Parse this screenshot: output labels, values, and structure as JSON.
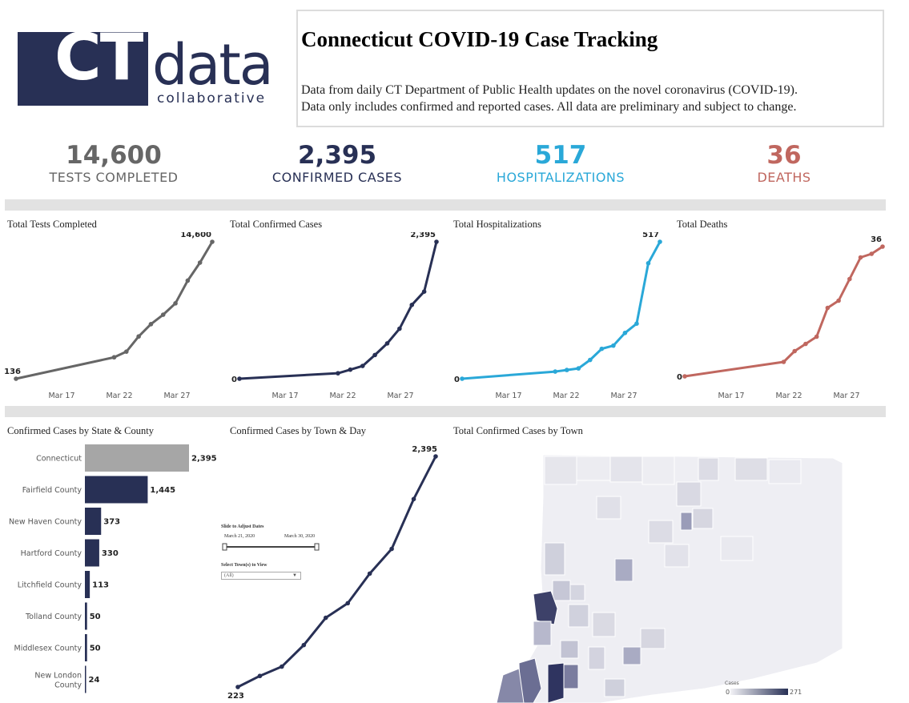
{
  "logo": {
    "ct": "CT",
    "data": "data",
    "collaborative": "collaborative"
  },
  "header": {
    "title": "Connecticut COVID-19 Case Tracking",
    "line1": "Data from daily CT Department of Public Health updates on the novel coronavirus (COVID-19).",
    "line2": "Data only includes confirmed and reported cases.  All data are preliminary and subject to change."
  },
  "colors": {
    "tests": "#666666",
    "cases": "#283055",
    "hosp": "#2aa8d8",
    "deaths": "#c0675f",
    "connecticut_bar": "#a6a6a6"
  },
  "kpis": [
    {
      "value": "14,600",
      "label": "TESTS COMPLETED"
    },
    {
      "value": "2,395",
      "label": "CONFIRMED CASES"
    },
    {
      "value": "517",
      "label": "HOSPITALIZATIONS"
    },
    {
      "value": "36",
      "label": "DEATHS"
    }
  ],
  "filters": {
    "slider_title": "Slide to Adjust Dates",
    "start_date": "March 21, 2020",
    "end_date": "March 30, 2020",
    "town_title": "Select Town(s) to View",
    "town_value": "(All)"
  },
  "map": {
    "title": "Total Confirmed Cases by Town",
    "legend_title": "Cases",
    "legend_min": "0",
    "legend_max": "271"
  },
  "chart_data": [
    {
      "type": "line",
      "title": "Total Tests Completed",
      "x_ticks": [
        "Mar 17",
        "Mar 22",
        "Mar 27"
      ],
      "x": [
        0,
        8,
        9,
        10,
        11,
        12,
        13,
        14,
        15,
        16
      ],
      "values": [
        136,
        2400,
        3000,
        4600,
        5900,
        6900,
        8100,
        10500,
        12400,
        14600
      ],
      "start_label": "136",
      "end_label": "14,600",
      "color": "#666666"
    },
    {
      "type": "line",
      "title": "Total Confirmed Cases",
      "x_ticks": [
        "Mar 17",
        "Mar 22",
        "Mar 27"
      ],
      "x": [
        0,
        8,
        9,
        10,
        11,
        12,
        13,
        14,
        15,
        16
      ],
      "values": [
        0,
        96,
        159,
        223,
        415,
        618,
        875,
        1291,
        1524,
        2395
      ],
      "start_label": "0",
      "end_label": "2,395",
      "color": "#283055"
    },
    {
      "type": "line",
      "title": "Total Hospitalizations",
      "x_ticks": [
        "Mar 17",
        "Mar 22",
        "Mar 27"
      ],
      "x": [
        0,
        8,
        9,
        10,
        11,
        12,
        13,
        14,
        15,
        16,
        17
      ],
      "values": [
        0,
        27,
        33,
        39,
        71,
        113,
        125,
        173,
        208,
        436,
        517
      ],
      "start_label": "0",
      "end_label": "517",
      "color": "#2aa8d8"
    },
    {
      "type": "line",
      "title": "Total Deaths",
      "x_ticks": [
        "Mar 17",
        "Mar 22",
        "Mar 27"
      ],
      "x": [
        0,
        9,
        10,
        11,
        12,
        13,
        14,
        15,
        16,
        17,
        18
      ],
      "values": [
        0,
        4,
        7,
        9,
        11,
        19,
        21,
        27,
        33,
        34,
        36
      ],
      "start_label": "0",
      "end_label": "36",
      "color": "#c0675f"
    },
    {
      "type": "bar",
      "orientation": "horizontal",
      "title": "Confirmed Cases by State & County",
      "categories": [
        "Connecticut",
        "Fairfield County",
        "New Haven County",
        "Hartford County",
        "Litchfield County",
        "Tolland County",
        "Middlesex County",
        "New London County"
      ],
      "values": [
        2395,
        1445,
        373,
        330,
        113,
        50,
        50,
        24
      ],
      "value_labels": [
        "2,395",
        "1,445",
        "373",
        "330",
        "113",
        "50",
        "50",
        "24"
      ]
    },
    {
      "type": "line",
      "title": "Confirmed Cases by Town & Day",
      "x": [
        0,
        1,
        2,
        3,
        4,
        5,
        6,
        7,
        8,
        9
      ],
      "values": [
        223,
        327,
        415,
        618,
        875,
        1012,
        1291,
        1524,
        1993,
        2395
      ],
      "start_label": "223",
      "end_label": "2,395",
      "color": "#283055"
    }
  ]
}
